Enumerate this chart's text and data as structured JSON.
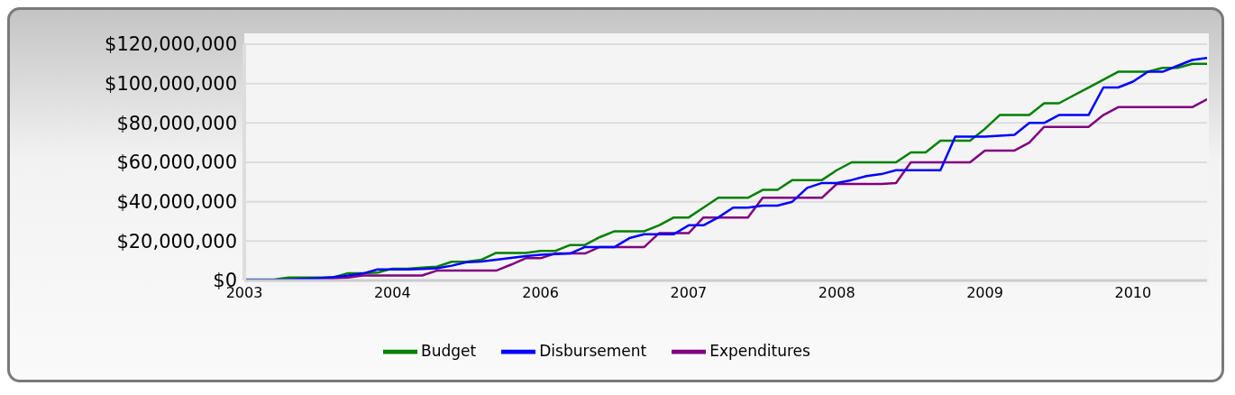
{
  "chart_data": {
    "type": "line",
    "categories": [
      "2003",
      null,
      null,
      null,
      null,
      null,
      null,
      null,
      null,
      null,
      "2004",
      null,
      null,
      null,
      null,
      null,
      null,
      null,
      null,
      null,
      "2006",
      null,
      null,
      null,
      null,
      null,
      null,
      null,
      null,
      null,
      "2007",
      null,
      null,
      null,
      null,
      null,
      null,
      null,
      null,
      null,
      "2008",
      null,
      null,
      null,
      null,
      null,
      null,
      null,
      null,
      null,
      "2009",
      null,
      null,
      null,
      null,
      null,
      null,
      null,
      null,
      null,
      "2010",
      null,
      null,
      null,
      null,
      null
    ],
    "series": [
      {
        "name": "Budget",
        "color": "#008000",
        "values": [
          500000,
          500000,
          500000,
          1500000,
          1500000,
          1500000,
          1500000,
          3700000,
          3700000,
          4000000,
          6000000,
          6000000,
          6500000,
          7000000,
          9500000,
          9500000,
          10500000,
          14000000,
          14000000,
          14000000,
          15000000,
          15000000,
          18000000,
          18000000,
          22000000,
          25000000,
          25000000,
          25000000,
          28000000,
          32000000,
          32000000,
          37000000,
          42000000,
          42000000,
          42000000,
          46000000,
          46000000,
          51000000,
          51000000,
          51000000,
          56000000,
          60000000,
          60000000,
          60000000,
          60000000,
          65000000,
          65000000,
          71000000,
          71000000,
          71000000,
          77000000,
          84000000,
          84000000,
          84000000,
          90000000,
          90000000,
          94000000,
          98000000,
          102000000,
          106000000,
          106000000,
          106000000,
          108000000,
          108000000,
          110000000,
          110000000
        ]
      },
      {
        "name": "Disbursement",
        "color": "#0000ff",
        "values": [
          300000,
          300000,
          300000,
          500000,
          800000,
          1200000,
          1700000,
          2500000,
          3500000,
          5600000,
          5600000,
          5600000,
          5800000,
          6200000,
          7500000,
          9300000,
          9600000,
          10500000,
          11500000,
          12400000,
          13000000,
          13400000,
          13700000,
          17000000,
          17000000,
          17000000,
          21500000,
          23500000,
          23500000,
          23500000,
          28000000,
          28000000,
          32000000,
          37000000,
          37000000,
          38000000,
          38000000,
          40000000,
          47000000,
          49500000,
          49500000,
          51000000,
          53000000,
          54000000,
          56000000,
          56000000,
          56000000,
          56000000,
          73000000,
          73000000,
          73000000,
          73500000,
          74000000,
          80000000,
          80000000,
          84000000,
          84000000,
          84000000,
          98000000,
          98000000,
          101000000,
          106000000,
          106000000,
          109000000,
          112000000,
          113000000
        ]
      },
      {
        "name": "Expenditures",
        "color": "#800080",
        "values": [
          null,
          null,
          null,
          null,
          500000,
          800000,
          1000000,
          1500000,
          2500000,
          2500000,
          2500000,
          2500000,
          2500000,
          5000000,
          5000000,
          5000000,
          5000000,
          5000000,
          8000000,
          11300000,
          11300000,
          13700000,
          13700000,
          13700000,
          17000000,
          17000000,
          17000000,
          17000000,
          24000000,
          24000000,
          24000000,
          32000000,
          32000000,
          32000000,
          32000000,
          42000000,
          42000000,
          42000000,
          42000000,
          42000000,
          49000000,
          49000000,
          49000000,
          49000000,
          49500000,
          60000000,
          60000000,
          60000000,
          60000000,
          60000000,
          66000000,
          66000000,
          66000000,
          70000000,
          78000000,
          78000000,
          78000000,
          78000000,
          84000000,
          88000000,
          88000000,
          88000000,
          88000000,
          88000000,
          88000000,
          92000000
        ]
      }
    ],
    "ylim": [
      0,
      120000000
    ],
    "yticks": [
      {
        "value": 0,
        "label": "$0"
      },
      {
        "value": 20000000,
        "label": "$20,000,000"
      },
      {
        "value": 40000000,
        "label": "$40,000,000"
      },
      {
        "value": 60000000,
        "label": "$60,000,000"
      },
      {
        "value": 80000000,
        "label": "$80,000,000"
      },
      {
        "value": 100000000,
        "label": "$100,000,000"
      },
      {
        "value": 120000000,
        "label": "$120,000,000"
      }
    ],
    "grid": "y",
    "legend": "bottom",
    "marker": "none",
    "line_style": "solid"
  }
}
